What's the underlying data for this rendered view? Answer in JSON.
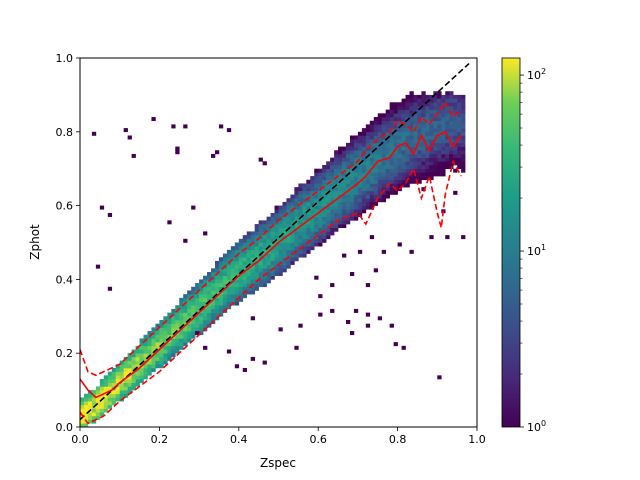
{
  "chart_data": {
    "type": "heatmap",
    "title": "",
    "xlabel": "Zspec",
    "ylabel": "Zphot",
    "xlim": [
      0.0,
      1.0
    ],
    "ylim": [
      0.0,
      1.0
    ],
    "x_ticks": [
      "0.0",
      "0.2",
      "0.4",
      "0.6",
      "0.8",
      "1.0"
    ],
    "y_ticks": [
      "0.0",
      "0.2",
      "0.4",
      "0.6",
      "0.8",
      "1.0"
    ],
    "grid": false,
    "colormap": "viridis",
    "colorbar": {
      "scale": "log",
      "range": [
        1,
        125
      ],
      "tick_labels": [
        {
          "base": "10",
          "exp": "0",
          "value": 1
        },
        {
          "base": "10",
          "exp": "1",
          "value": 10
        },
        {
          "base": "10",
          "exp": "2",
          "value": 100
        }
      ]
    },
    "bin_width": 0.01,
    "bin_height": 0.01,
    "ridge": [
      [
        0.0,
        0.03
      ],
      [
        0.05,
        0.07
      ],
      [
        0.1,
        0.12
      ],
      [
        0.15,
        0.17
      ],
      [
        0.2,
        0.22
      ],
      [
        0.25,
        0.27
      ],
      [
        0.3,
        0.32
      ],
      [
        0.35,
        0.37
      ],
      [
        0.4,
        0.42
      ],
      [
        0.45,
        0.46
      ],
      [
        0.5,
        0.5
      ],
      [
        0.55,
        0.55
      ],
      [
        0.6,
        0.59
      ],
      [
        0.65,
        0.64
      ],
      [
        0.7,
        0.68
      ],
      [
        0.75,
        0.72
      ],
      [
        0.8,
        0.76
      ],
      [
        0.85,
        0.79
      ],
      [
        0.9,
        0.81
      ],
      [
        0.95,
        0.83
      ]
    ],
    "outliers": [
      [
        0.03,
        0.79
      ],
      [
        0.11,
        0.8
      ],
      [
        0.12,
        0.78
      ],
      [
        0.13,
        0.73
      ],
      [
        0.18,
        0.83
      ],
      [
        0.23,
        0.81
      ],
      [
        0.26,
        0.81
      ],
      [
        0.35,
        0.81
      ],
      [
        0.37,
        0.8
      ],
      [
        0.24,
        0.75
      ],
      [
        0.24,
        0.74
      ],
      [
        0.33,
        0.73
      ],
      [
        0.34,
        0.74
      ],
      [
        0.45,
        0.72
      ],
      [
        0.46,
        0.71
      ],
      [
        0.05,
        0.59
      ],
      [
        0.07,
        0.57
      ],
      [
        0.28,
        0.59
      ],
      [
        0.04,
        0.43
      ],
      [
        0.07,
        0.37
      ],
      [
        0.22,
        0.55
      ],
      [
        0.31,
        0.52
      ],
      [
        0.26,
        0.5
      ],
      [
        0.5,
        0.26
      ],
      [
        0.43,
        0.29
      ],
      [
        0.55,
        0.27
      ],
      [
        0.6,
        0.3
      ],
      [
        0.67,
        0.28
      ],
      [
        0.68,
        0.25
      ],
      [
        0.72,
        0.27
      ],
      [
        0.75,
        0.29
      ],
      [
        0.78,
        0.27
      ],
      [
        0.81,
        0.21
      ],
      [
        0.9,
        0.13
      ],
      [
        0.79,
        0.22
      ],
      [
        0.72,
        0.3
      ],
      [
        0.69,
        0.31
      ],
      [
        0.63,
        0.31
      ],
      [
        0.54,
        0.21
      ],
      [
        0.59,
        0.4
      ],
      [
        0.63,
        0.38
      ],
      [
        0.68,
        0.41
      ],
      [
        0.72,
        0.38
      ],
      [
        0.74,
        0.42
      ],
      [
        0.83,
        0.47
      ],
      [
        0.8,
        0.49
      ],
      [
        0.88,
        0.51
      ],
      [
        0.92,
        0.51
      ],
      [
        0.96,
        0.51
      ],
      [
        0.96,
        0.69
      ],
      [
        0.39,
        0.16
      ],
      [
        0.41,
        0.15
      ],
      [
        0.43,
        0.18
      ],
      [
        0.46,
        0.17
      ],
      [
        0.37,
        0.2
      ],
      [
        0.31,
        0.21
      ],
      [
        0.29,
        0.25
      ],
      [
        0.6,
        0.35
      ],
      [
        0.66,
        0.46
      ],
      [
        0.7,
        0.47
      ],
      [
        0.73,
        0.51
      ],
      [
        0.76,
        0.47
      ],
      [
        0.86,
        0.64
      ],
      [
        0.91,
        0.58
      ],
      [
        0.94,
        0.63
      ]
    ],
    "series": [
      {
        "name": "",
        "style": "dashed",
        "color": "#000000",
        "x": [
          0.0,
          0.98
        ],
        "y": [
          0.02,
          0.985
        ]
      },
      {
        "name": "",
        "style": "solid",
        "color": "#ff0000",
        "x": [
          0.0,
          0.02,
          0.04,
          0.06,
          0.08,
          0.1,
          0.15,
          0.2,
          0.25,
          0.3,
          0.35,
          0.4,
          0.45,
          0.5,
          0.55,
          0.6,
          0.65,
          0.7,
          0.72,
          0.75,
          0.78,
          0.8,
          0.82,
          0.84,
          0.86,
          0.88,
          0.9,
          0.92,
          0.94,
          0.96
        ],
        "y": [
          0.13,
          0.1,
          0.08,
          0.09,
          0.1,
          0.12,
          0.16,
          0.21,
          0.26,
          0.31,
          0.36,
          0.41,
          0.45,
          0.5,
          0.54,
          0.58,
          0.62,
          0.66,
          0.68,
          0.72,
          0.73,
          0.76,
          0.77,
          0.74,
          0.79,
          0.75,
          0.79,
          0.8,
          0.76,
          0.79
        ]
      },
      {
        "name": "",
        "style": "dashed",
        "color": "#ff0000",
        "x": [
          0.0,
          0.02,
          0.04,
          0.06,
          0.1,
          0.15,
          0.2,
          0.25,
          0.3,
          0.35,
          0.4,
          0.45,
          0.5,
          0.55,
          0.6,
          0.65,
          0.7,
          0.72,
          0.75,
          0.78,
          0.8,
          0.82,
          0.84,
          0.86,
          0.88,
          0.9,
          0.92,
          0.94,
          0.96
        ],
        "y": [
          0.21,
          0.15,
          0.14,
          0.15,
          0.17,
          0.22,
          0.27,
          0.32,
          0.37,
          0.42,
          0.47,
          0.51,
          0.56,
          0.6,
          0.64,
          0.68,
          0.72,
          0.75,
          0.78,
          0.8,
          0.83,
          0.82,
          0.8,
          0.84,
          0.82,
          0.85,
          0.88,
          0.84,
          0.86
        ]
      },
      {
        "name": "",
        "style": "dashed",
        "color": "#ff0000",
        "x": [
          0.0,
          0.02,
          0.04,
          0.06,
          0.1,
          0.15,
          0.2,
          0.25,
          0.3,
          0.35,
          0.4,
          0.45,
          0.5,
          0.55,
          0.6,
          0.65,
          0.7,
          0.72,
          0.75,
          0.78,
          0.8,
          0.82,
          0.84,
          0.86,
          0.88,
          0.9,
          0.91,
          0.92,
          0.94,
          0.96
        ],
        "y": [
          0.04,
          0.01,
          0.02,
          0.03,
          0.07,
          0.11,
          0.15,
          0.2,
          0.25,
          0.3,
          0.35,
          0.4,
          0.44,
          0.48,
          0.52,
          0.56,
          0.58,
          0.55,
          0.62,
          0.66,
          0.64,
          0.66,
          0.7,
          0.62,
          0.68,
          0.58,
          0.54,
          0.63,
          0.72,
          0.68
        ]
      }
    ]
  }
}
